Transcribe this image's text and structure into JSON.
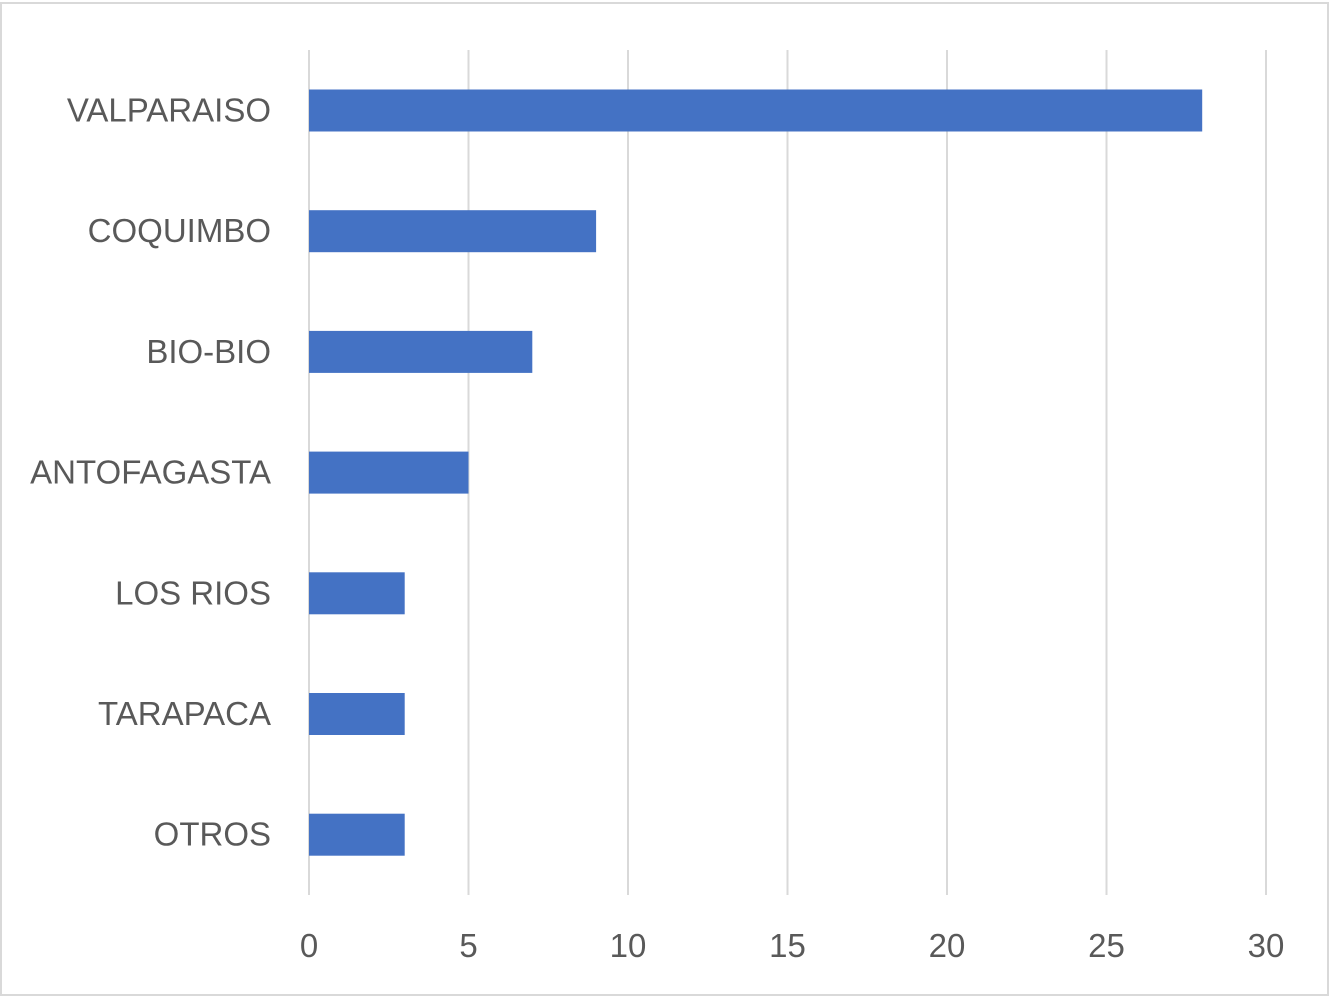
{
  "chart_data": {
    "type": "bar",
    "orientation": "horizontal",
    "categories": [
      "VALPARAISO",
      "COQUIMBO",
      "BIO-BIO",
      "ANTOFAGASTA",
      "LOS RIOS",
      "TARAPACA",
      "OTROS"
    ],
    "values": [
      28,
      9,
      7,
      5,
      3,
      3,
      3
    ],
    "xlim": [
      0,
      30
    ],
    "x_ticks": [
      "0",
      "5",
      "10",
      "15",
      "20",
      "25",
      "30"
    ],
    "grid": "vertical",
    "legend": "none",
    "title": "",
    "xlabel": "",
    "ylabel": "",
    "colors": {
      "bar": "#4472C4",
      "gridline": "#D9D9D9",
      "label": "#595959",
      "frame": "#D9D9D9"
    }
  }
}
